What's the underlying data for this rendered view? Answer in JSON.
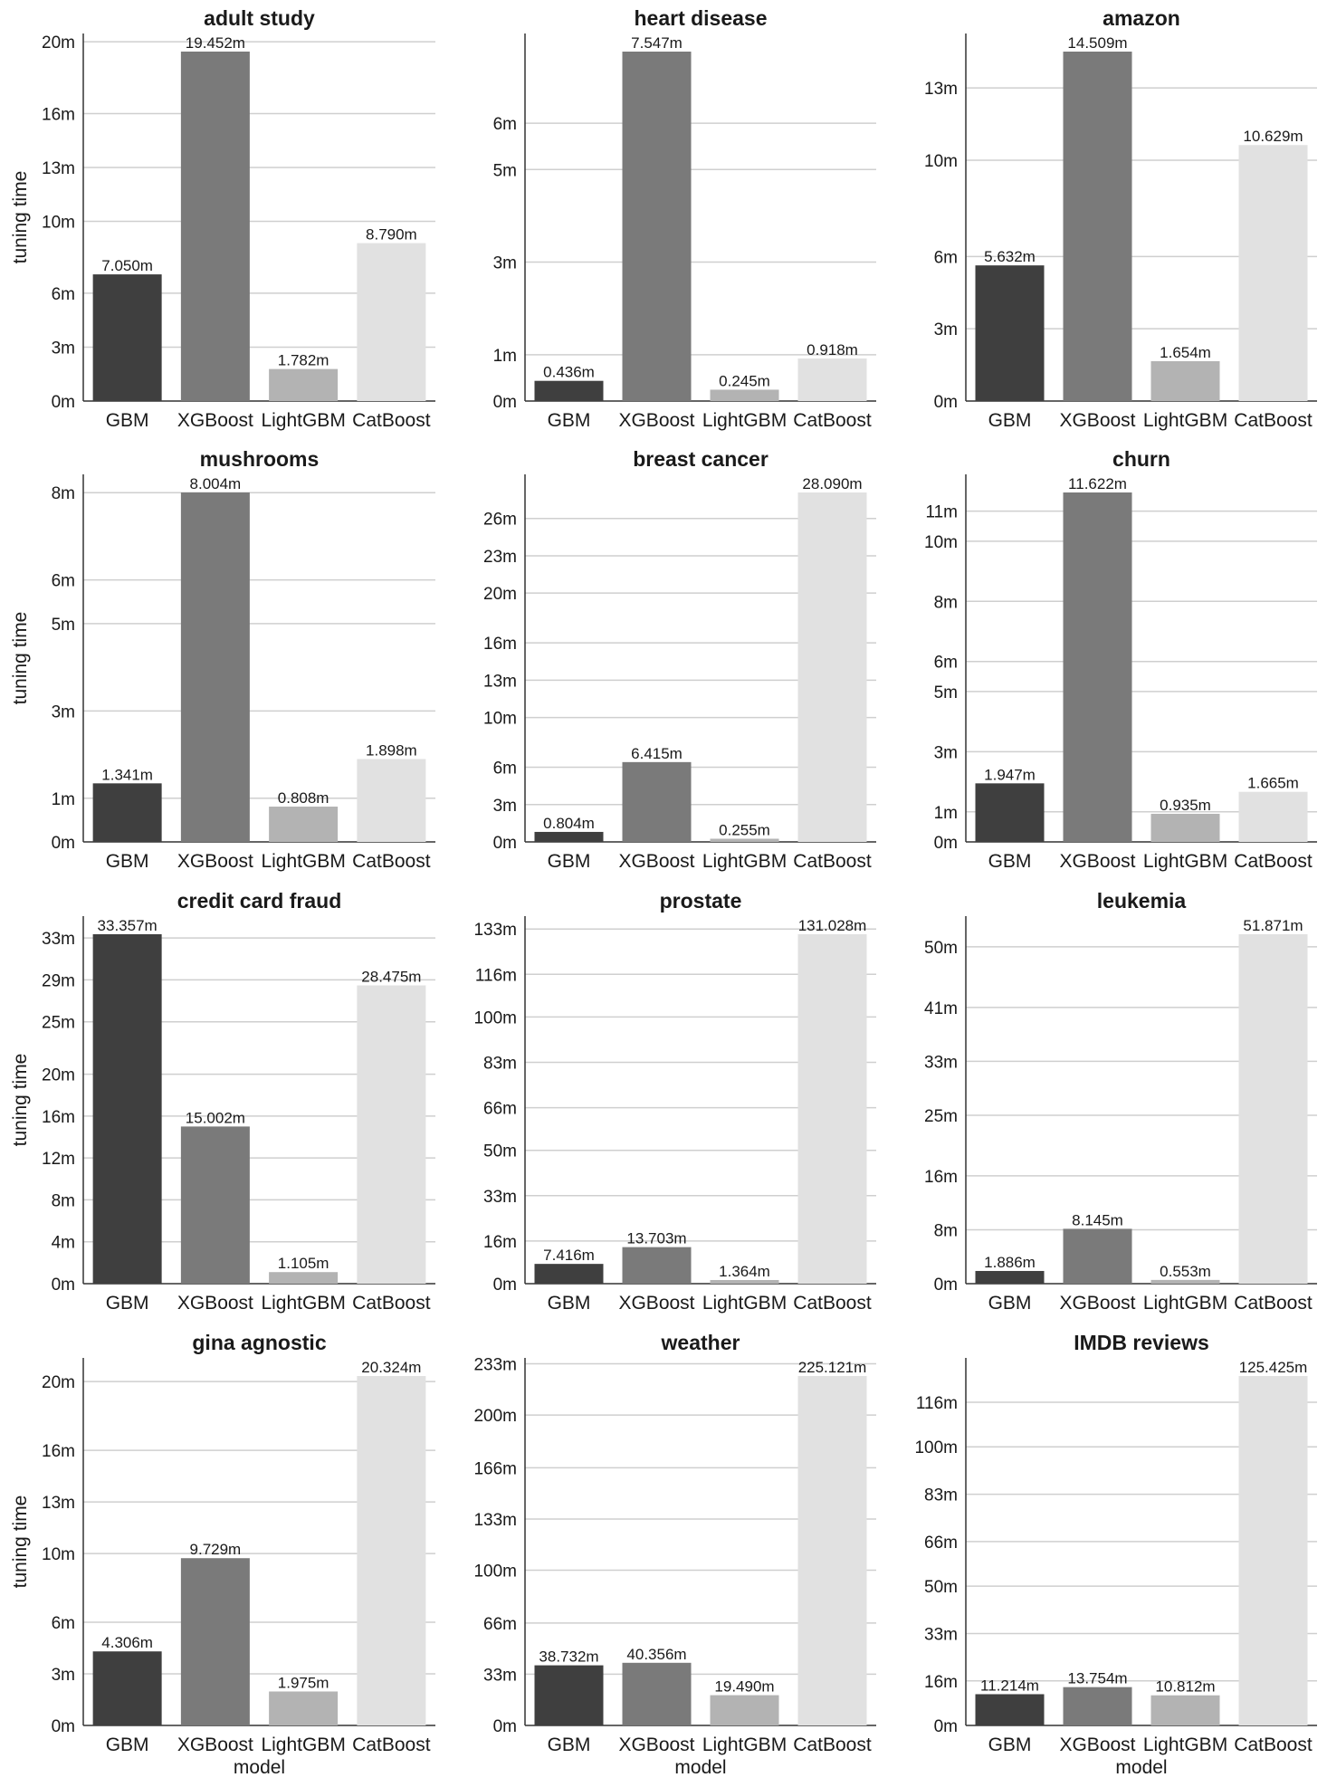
{
  "chart_data": [
    {
      "type": "bar",
      "title": "adult study",
      "categories": [
        "GBM",
        "XGBoost",
        "LightGBM",
        "CatBoost"
      ],
      "values": [
        7.05,
        19.452,
        1.782,
        8.79
      ],
      "labels": [
        "7.050m",
        "19.452m",
        "1.782m",
        "8.790m"
      ],
      "yticks": [
        "0m",
        "3m",
        "6m",
        "10m",
        "13m",
        "16m",
        "20m"
      ],
      "ylim": [
        0,
        19.45
      ],
      "ylabel": "tuning time",
      "xlabel": ""
    },
    {
      "type": "bar",
      "title": "heart disease",
      "categories": [
        "GBM",
        "XGBoost",
        "LightGBM",
        "CatBoost"
      ],
      "values": [
        0.436,
        7.547,
        0.245,
        0.918
      ],
      "labels": [
        "0.436m",
        "7.547m",
        "0.245m",
        "0.918m"
      ],
      "yticks": [
        "0m",
        "1m",
        "3m",
        "5m",
        "6m"
      ],
      "ylim": [
        0,
        7.547
      ],
      "ylabel": "",
      "xlabel": ""
    },
    {
      "type": "bar",
      "title": "amazon",
      "categories": [
        "GBM",
        "XGBoost",
        "LightGBM",
        "CatBoost"
      ],
      "values": [
        5.632,
        14.509,
        1.654,
        10.629
      ],
      "labels": [
        "5.632m",
        "14.509m",
        "1.654m",
        "10.629m"
      ],
      "yticks": [
        "0m",
        "3m",
        "6m",
        "10m",
        "13m"
      ],
      "ylim": [
        0,
        14.509
      ],
      "ylabel": "",
      "xlabel": ""
    },
    {
      "type": "bar",
      "title": "mushrooms",
      "categories": [
        "GBM",
        "XGBoost",
        "LightGBM",
        "CatBoost"
      ],
      "values": [
        1.341,
        8.004,
        0.808,
        1.898
      ],
      "labels": [
        "1.341m",
        "8.004m",
        "0.808m",
        "1.898m"
      ],
      "yticks": [
        "0m",
        "1m",
        "3m",
        "5m",
        "6m",
        "8m"
      ],
      "ylim": [
        0,
        8.004
      ],
      "ylabel": "tuning time",
      "xlabel": ""
    },
    {
      "type": "bar",
      "title": "breast cancer",
      "categories": [
        "GBM",
        "XGBoost",
        "LightGBM",
        "CatBoost"
      ],
      "values": [
        0.804,
        6.415,
        0.255,
        28.09
      ],
      "labels": [
        "0.804m",
        "6.415m",
        "0.255m",
        "28.090m"
      ],
      "yticks": [
        "0m",
        "3m",
        "6m",
        "10m",
        "13m",
        "16m",
        "20m",
        "23m",
        "26m"
      ],
      "ylim": [
        0,
        28.09
      ],
      "ylabel": "",
      "xlabel": ""
    },
    {
      "type": "bar",
      "title": "churn",
      "categories": [
        "GBM",
        "XGBoost",
        "LightGBM",
        "CatBoost"
      ],
      "values": [
        1.947,
        11.622,
        0.935,
        1.665
      ],
      "labels": [
        "1.947m",
        "11.622m",
        "0.935m",
        "1.665m"
      ],
      "yticks": [
        "0m",
        "1m",
        "3m",
        "5m",
        "6m",
        "8m",
        "10m",
        "11m"
      ],
      "ylim": [
        0,
        11.622
      ],
      "ylabel": "",
      "xlabel": ""
    },
    {
      "type": "bar",
      "title": "credit card fraud",
      "categories": [
        "GBM",
        "XGBoost",
        "LightGBM",
        "CatBoost"
      ],
      "values": [
        33.357,
        15.002,
        1.105,
        28.475
      ],
      "labels": [
        "33.357m",
        "15.002m",
        "1.105m",
        "28.475m"
      ],
      "yticks": [
        "0m",
        "4m",
        "8m",
        "12m",
        "16m",
        "20m",
        "25m",
        "29m",
        "33m"
      ],
      "ylim": [
        0,
        33.357
      ],
      "ylabel": "tuning time",
      "xlabel": ""
    },
    {
      "type": "bar",
      "title": "prostate",
      "categories": [
        "GBM",
        "XGBoost",
        "LightGBM",
        "CatBoost"
      ],
      "values": [
        7.416,
        13.703,
        1.364,
        131.028
      ],
      "labels": [
        "7.416m",
        "13.703m",
        "1.364m",
        "131.028m"
      ],
      "yticks": [
        "0m",
        "16m",
        "33m",
        "50m",
        "66m",
        "83m",
        "100m",
        "116m",
        "133m"
      ],
      "ylim": [
        0,
        131.028
      ],
      "ylabel": "",
      "xlabel": ""
    },
    {
      "type": "bar",
      "title": "leukemia",
      "categories": [
        "GBM",
        "XGBoost",
        "LightGBM",
        "CatBoost"
      ],
      "values": [
        1.886,
        8.145,
        0.553,
        51.871
      ],
      "labels": [
        "1.886m",
        "8.145m",
        "0.553m",
        "51.871m"
      ],
      "yticks": [
        "0m",
        "8m",
        "16m",
        "25m",
        "33m",
        "41m",
        "50m"
      ],
      "ylim": [
        0,
        51.871
      ],
      "ylabel": "",
      "xlabel": ""
    },
    {
      "type": "bar",
      "title": "gina agnostic",
      "categories": [
        "GBM",
        "XGBoost",
        "LightGBM",
        "CatBoost"
      ],
      "values": [
        4.306,
        9.729,
        1.975,
        20.324
      ],
      "labels": [
        "4.306m",
        "9.729m",
        "1.975m",
        "20.324m"
      ],
      "yticks": [
        "0m",
        "3m",
        "6m",
        "10m",
        "13m",
        "16m",
        "20m"
      ],
      "ylim": [
        0,
        20.324
      ],
      "ylabel": "tuning time",
      "xlabel": "model"
    },
    {
      "type": "bar",
      "title": "weather",
      "categories": [
        "GBM",
        "XGBoost",
        "LightGBM",
        "CatBoost"
      ],
      "values": [
        38.732,
        40.356,
        19.49,
        225.121
      ],
      "labels": [
        "38.732m",
        "40.356m",
        "19.490m",
        "225.121m"
      ],
      "yticks": [
        "0m",
        "33m",
        "66m",
        "100m",
        "133m",
        "166m",
        "200m",
        "233m"
      ],
      "ylim": [
        0,
        225.121
      ],
      "ylabel": "",
      "xlabel": "model"
    },
    {
      "type": "bar",
      "title": "IMDB reviews",
      "categories": [
        "GBM",
        "XGBoost",
        "LightGBM",
        "CatBoost"
      ],
      "values": [
        11.214,
        13.754,
        10.812,
        125.425
      ],
      "labels": [
        "11.214m",
        "13.754m",
        "10.812m",
        "125.425m"
      ],
      "yticks": [
        "0m",
        "16m",
        "33m",
        "50m",
        "66m",
        "83m",
        "100m",
        "116m"
      ],
      "ylim": [
        0,
        125.425
      ],
      "ylabel": "",
      "xlabel": "model"
    }
  ],
  "colors": [
    "#3f3f3f",
    "#7a7a7a",
    "#b3b3b3",
    "#e1e1e1"
  ],
  "grid": true,
  "legend": "none"
}
